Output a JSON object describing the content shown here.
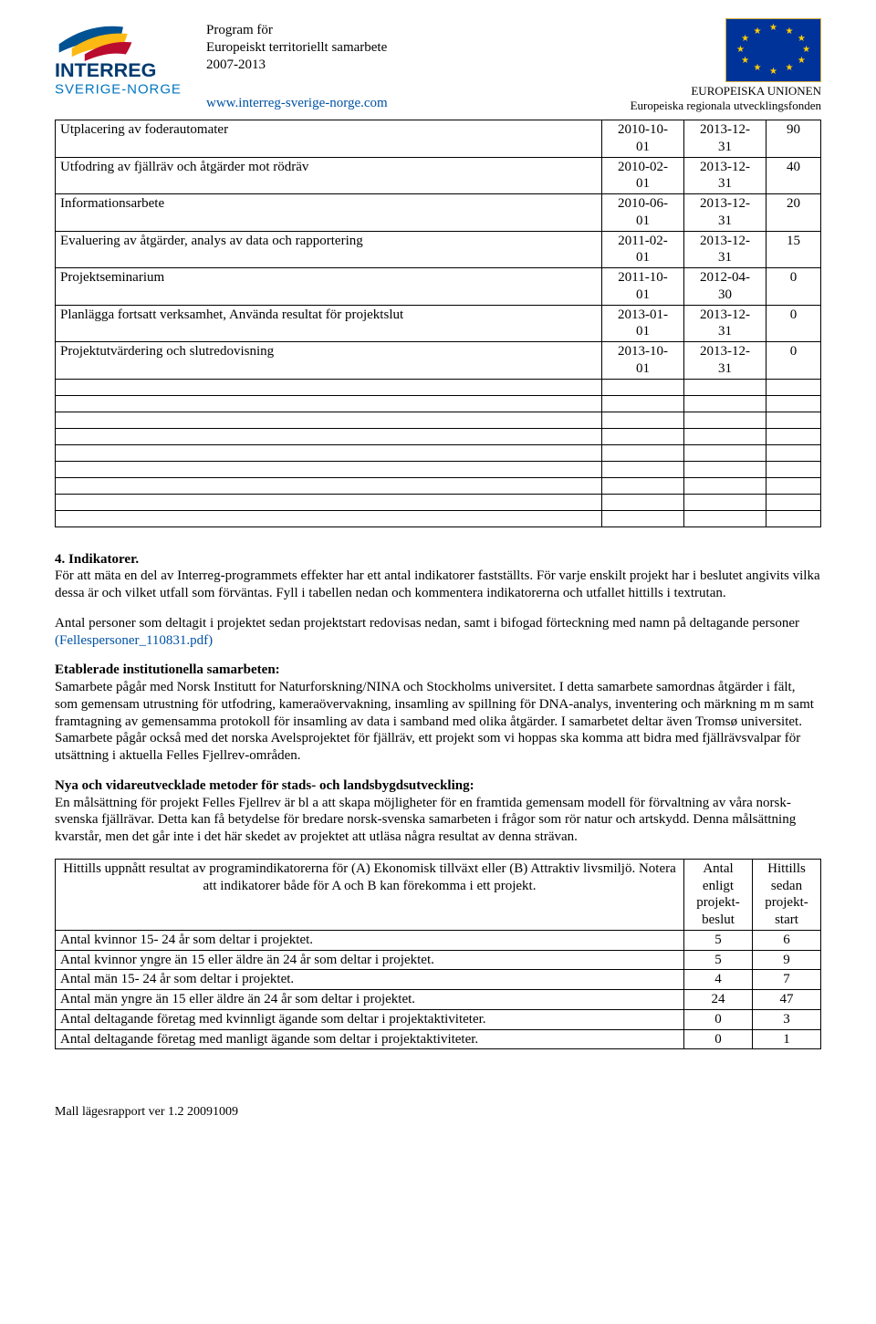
{
  "header": {
    "program_line1": "Program för",
    "program_line2": "Europeiskt territoriellt samarbete",
    "program_line3": "2007-2013",
    "website": "www.interreg-sverige-norge.com",
    "eu_line1": "EUROPEISKA UNIONEN",
    "eu_line2": "Europeiska regionala utvecklingsfonden",
    "logo_text1": "INTERREG",
    "logo_text2": "SVERIGE-NORGE"
  },
  "table1": {
    "rows": [
      {
        "activity": "Utplacering av foderautomater",
        "d1a": "2010-10-",
        "d1b": "01",
        "d2a": "2013-12-",
        "d2b": "31",
        "n": "90"
      },
      {
        "activity": "Utfodring av fjällräv och åtgärder mot rödräv",
        "d1a": "2010-02-",
        "d1b": "01",
        "d2a": "2013-12-",
        "d2b": "31",
        "n": "40"
      },
      {
        "activity": "Informationsarbete",
        "d1a": "2010-06-",
        "d1b": "01",
        "d2a": "2013-12-",
        "d2b": "31",
        "n": "20"
      },
      {
        "activity": "Evaluering av åtgärder, analys av data och rapportering",
        "d1a": "2011-02-",
        "d1b": "01",
        "d2a": "2013-12-",
        "d2b": "31",
        "n": "15"
      },
      {
        "activity": "Projektseminarium",
        "d1a": "2011-10-",
        "d1b": "01",
        "d2a": "2012-04-",
        "d2b": "30",
        "n": "0"
      },
      {
        "activity": "Planlägga fortsatt verksamhet, Använda resultat för projektslut",
        "d1a": "2013-01-",
        "d1b": "01",
        "d2a": "2013-12-",
        "d2b": "31",
        "n": "0"
      },
      {
        "activity": "Projektutvärdering och slutredovisning",
        "d1a": "2013-10-",
        "d1b": "01",
        "d2a": "2013-12-",
        "d2b": "31",
        "n": "0"
      }
    ],
    "empty_count": 9
  },
  "section4": {
    "heading": "4. Indikatorer.",
    "desc": "För att mäta en del av Interreg-programmets effekter har ett antal indikatorer fastställts. För varje enskilt projekt har i beslutet angivits vilka dessa är och vilket utfall som förväntas. Fyll i tabellen nedan och kommentera indikatorerna och utfallet hittills i textrutan.",
    "p1a": "Antal personer som deltagit i projektet sedan projektstart redovisas nedan, samt i bifogad förteckning med namn på deltagande personer ",
    "p1b": "(Fellespersoner_110831.pdf)",
    "sub1_h": "Etablerade institutionella samarbeten:",
    "sub1_p": "Samarbete pågår med Norsk Institutt for Naturforskning/NINA och Stockholms universitet. I detta samarbete samordnas åtgärder i fält, som gemensam utrustning för utfodring, kameraövervakning, insamling av spillning för DNA-analys, inventering och märkning m m samt framtagning av gemensamma protokoll för insamling av data i samband med olika åtgärder. I samarbetet deltar även Tromsø universitet. Samarbete pågår också med det norska Avelsprojektet för fjällräv, ett projekt som vi hoppas ska komma att bidra med fjällrävsvalpar för utsättning i aktuella Felles Fjellrev-områden.",
    "sub2_h": "Nya och vidareutvecklade metoder för stads- och landsbygdsutveckling:",
    "sub2_p": "En målsättning för projekt Felles Fjellrev är bl a att skapa möjligheter för en framtida gemensam modell för förvaltning av våra norsk-svenska fjällrävar. Detta kan få betydelse för bredare norsk-svenska samarbeten i frågor som rör natur och artskydd. Denna målsättning kvarstår, men det går inte i det här skedet av projektet att utläsa några resultat av denna strävan."
  },
  "table2": {
    "h_label": "Hittills uppnått resultat av programindikatorerna för (A) Ekonomisk tillväxt eller (B) Attraktiv livsmiljö. Notera att indikatorer både för A och B kan förekomma i ett projekt.",
    "h_n1_l1": "Antal",
    "h_n1_l2": "enligt",
    "h_n1_l3": "projekt-",
    "h_n1_l4": "beslut",
    "h_n2_l1": "Hittills",
    "h_n2_l2": "sedan",
    "h_n2_l3": "projekt-",
    "h_n2_l4": "start",
    "rows": [
      {
        "label": "Antal kvinnor 15- 24 år som deltar i projektet.",
        "n1": "5",
        "n2": "6"
      },
      {
        "label": "Antal kvinnor yngre än 15 eller äldre än 24 år som deltar i projektet.",
        "n1": "5",
        "n2": "9"
      },
      {
        "label": "Antal män 15- 24 år som deltar i projektet.",
        "n1": "4",
        "n2": "7"
      },
      {
        "label": "Antal män yngre än 15 eller äldre än 24 år som deltar i projektet.",
        "n1": "24",
        "n2": "47"
      },
      {
        "label": "Antal deltagande företag med kvinnligt ägande som deltar i projektaktiviteter.",
        "n1": "0",
        "n2": "3"
      },
      {
        "label": "Antal deltagande företag med manligt ägande som deltar i projektaktiviteter.",
        "n1": "0",
        "n2": "1"
      }
    ]
  },
  "footer": "Mall lägesrapport ver 1.2 20091009",
  "colors": {
    "link": "#0052a4",
    "eu_blue": "#003399",
    "eu_gold": "#ffcc00",
    "se_blue": "#005293",
    "se_yellow": "#fdb913",
    "no_red": "#ba0c2f"
  }
}
